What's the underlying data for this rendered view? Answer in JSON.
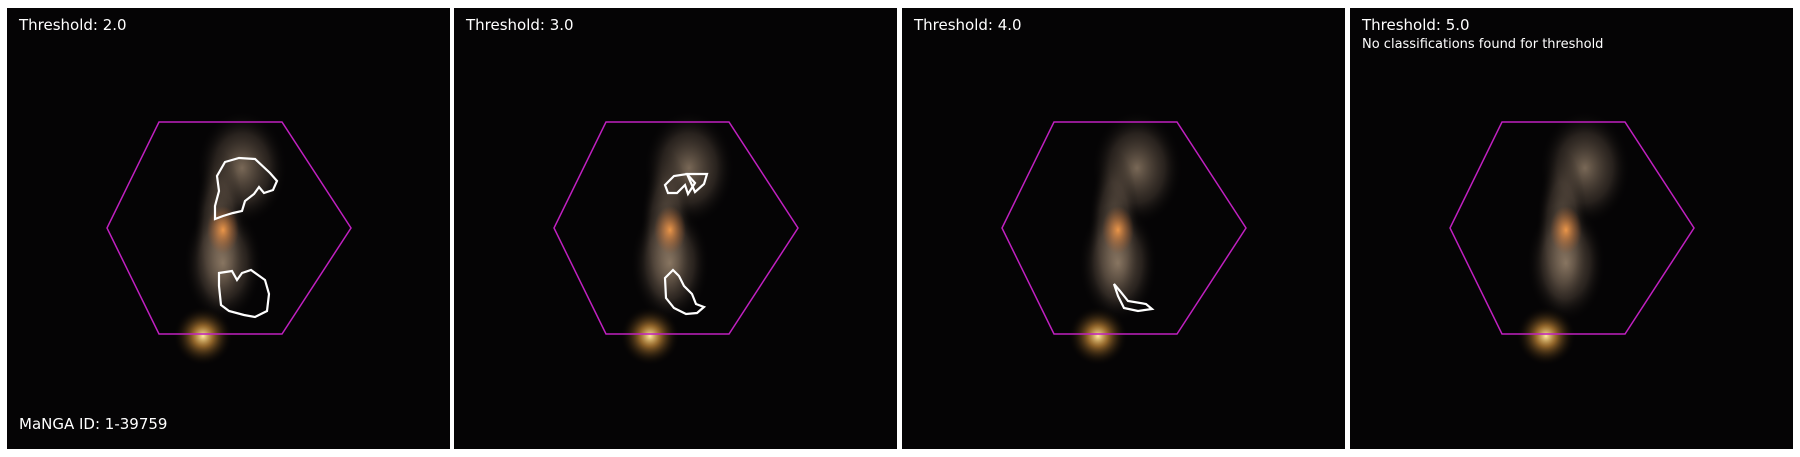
{
  "panels": [
    {
      "threshold_label": "Threshold: 2.0",
      "note": ""
    },
    {
      "threshold_label": "Threshold: 3.0",
      "note": ""
    },
    {
      "threshold_label": "Threshold: 4.0",
      "note": ""
    },
    {
      "threshold_label": "Threshold: 5.0",
      "note": "No classifications found for threshold"
    }
  ],
  "manga_id_label": "MaNGA ID: 1-39759",
  "colors": {
    "hexagon": "#c020c0",
    "contour": "#ffffff",
    "sky": "#050405",
    "galaxy_core": "#d9863f",
    "galaxy_halo": "#8c7a6a",
    "star": "#f0c060"
  }
}
